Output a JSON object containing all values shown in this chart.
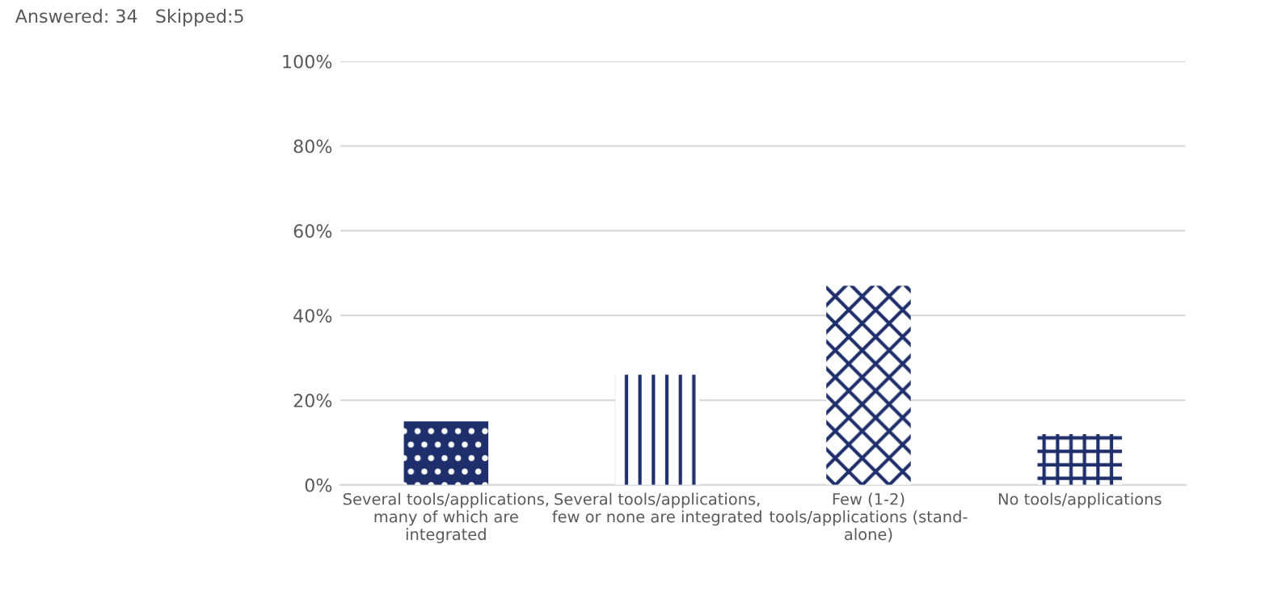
{
  "chart_data": {
    "type": "bar",
    "categories": [
      "Several tools/applications,\nmany of which are\nintegrated",
      "Several tools/applications,\nfew or none are integrated",
      "Few (1-2)\ntools/applications (stand-\nalone)",
      "No tools/applications"
    ],
    "values": [
      15,
      26,
      47,
      12
    ],
    "color": "#1f2f6b",
    "ylim": [
      0,
      100
    ],
    "yticks": [
      {
        "value": 0,
        "label": "0%"
      },
      {
        "value": 20,
        "label": "20%"
      },
      {
        "value": 40,
        "label": "40%"
      },
      {
        "value": 60,
        "label": "60%"
      },
      {
        "value": 80,
        "label": "80%"
      },
      {
        "value": 100,
        "label": "100%"
      }
    ],
    "grid": "y",
    "annotations": [
      "Answered: 34   Skipped:5"
    ]
  }
}
